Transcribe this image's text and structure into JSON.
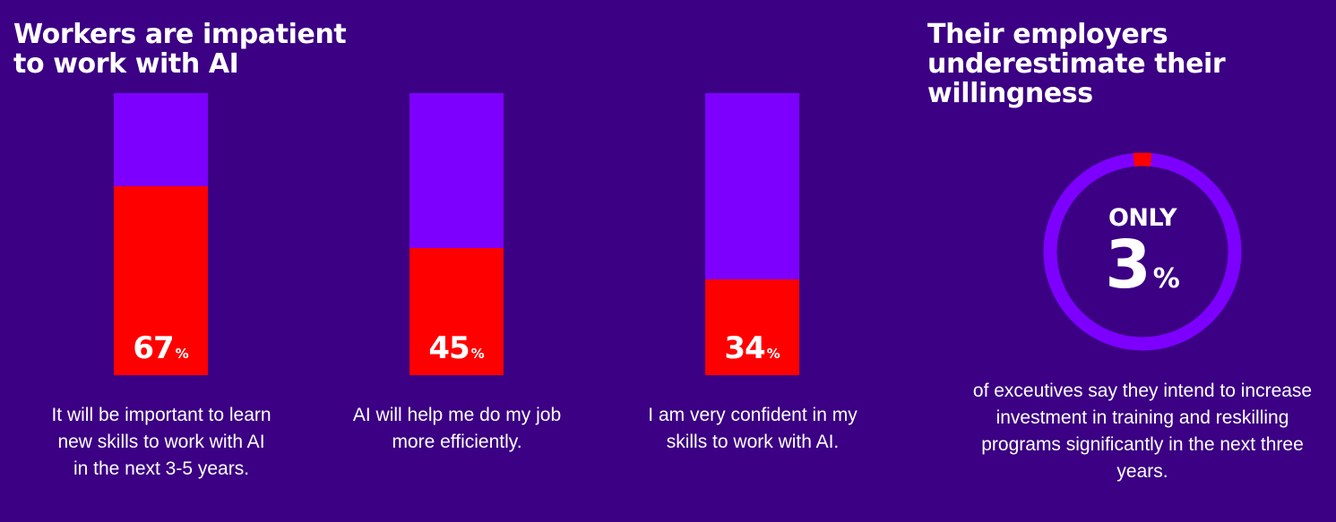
{
  "left_panel": {
    "title": "Workers are impatient to work with AI"
  },
  "right_panel": {
    "title": "Their employers underestimate their willingness",
    "donut_label": "ONLY",
    "donut_value": "3",
    "donut_unit": "%",
    "caption": "of exceutives say they intend to increase investment in training and reskilling programs significantly in the next three years."
  },
  "colors": {
    "background": "#3b0083",
    "bar_track": "#7d00ff",
    "bar_fill": "#ff0000",
    "text": "#ffffff"
  },
  "chart_data": [
    {
      "type": "bar",
      "orientation": "vertical-stacked-percent",
      "categories": [
        "It will be important to learn new skills to work with AI in the next 3-5 years.",
        "AI will help me do my job more efficiently.",
        "I am very confident in my skills to work with AI."
      ],
      "values": [
        67,
        45,
        34
      ],
      "value_labels": [
        "67",
        "45",
        "34"
      ],
      "unit": "%",
      "ylim": [
        0,
        100
      ],
      "grid": false
    },
    {
      "type": "pie",
      "style": "donut",
      "values": [
        3,
        97
      ],
      "value_label": "3",
      "unit": "%"
    }
  ]
}
